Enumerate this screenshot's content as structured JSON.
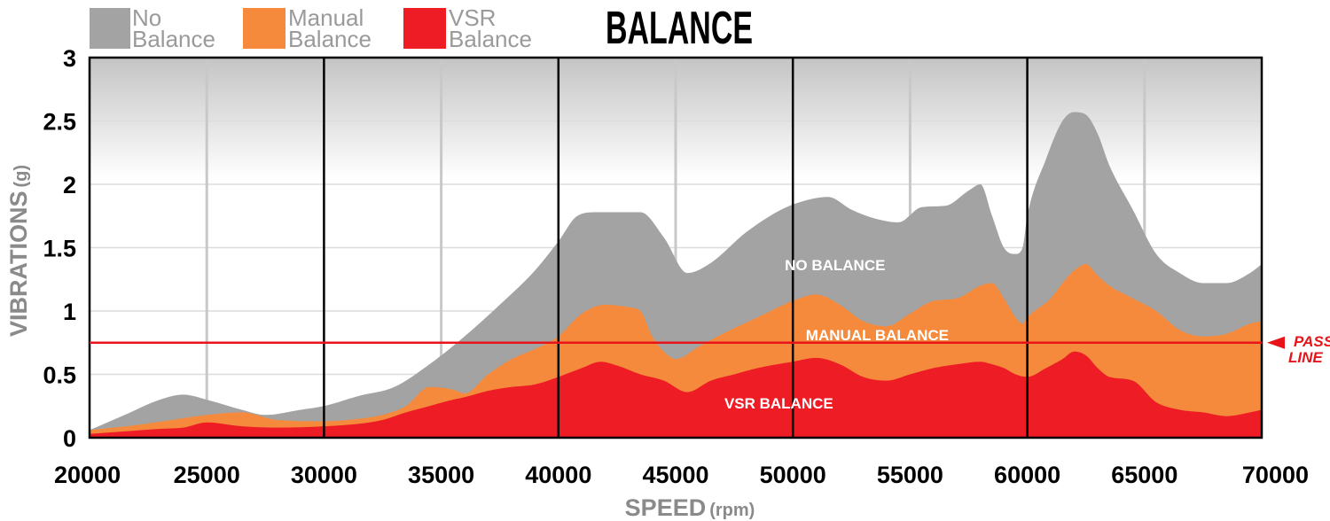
{
  "chart_data": {
    "type": "area",
    "title": "BALANCE",
    "xlabel": "SPEED",
    "xunit": "(rpm)",
    "ylabel": "VIBRATIONS",
    "yunit": "(g)",
    "xlim": [
      20000,
      70000
    ],
    "ylim": [
      0,
      3
    ],
    "xticks": [
      "20000",
      "25000",
      "30000",
      "35000",
      "40000",
      "45000",
      "50000",
      "55000",
      "60000",
      "65000",
      "70000"
    ],
    "yticks": [
      "0",
      "0.5",
      "1",
      "1.5",
      "2",
      "2.5",
      "3"
    ],
    "grid": true,
    "legend_position": "top-left",
    "legend": [
      {
        "line1": "No",
        "line2": "Balance",
        "color": "#a3a3a3"
      },
      {
        "line1": "Manual",
        "line2": "Balance",
        "color": "#f58a3c"
      },
      {
        "line1": "VSR",
        "line2": "Balance",
        "color": "#ee1c25"
      }
    ],
    "series": [
      {
        "name": "NO BALANCE",
        "color": "#a3a3a3",
        "x": [
          20000,
          21500,
          23000,
          24000,
          25000,
          26500,
          27500,
          29000,
          30000,
          31500,
          33000,
          34500,
          36000,
          37500,
          39000,
          40000,
          40800,
          41600,
          42500,
          43500,
          44500,
          45500,
          46500,
          48000,
          49500,
          50500,
          51500,
          52500,
          53500,
          54500,
          55500,
          56500,
          57500,
          58000,
          58500,
          59000,
          59500,
          59800,
          60000,
          60800,
          61500,
          62000,
          62500,
          63000,
          63500,
          64500,
          65500,
          66500,
          67500,
          68500,
          69500,
          70000
        ],
        "values": [
          0.06,
          0.18,
          0.3,
          0.34,
          0.3,
          0.22,
          0.18,
          0.22,
          0.25,
          0.33,
          0.4,
          0.58,
          0.8,
          1.05,
          1.32,
          1.55,
          1.75,
          1.78,
          1.78,
          1.78,
          1.58,
          1.3,
          1.38,
          1.62,
          1.8,
          1.87,
          1.9,
          1.8,
          1.73,
          1.7,
          1.82,
          1.83,
          1.95,
          2.0,
          1.75,
          1.5,
          1.45,
          1.5,
          1.75,
          2.2,
          2.5,
          2.57,
          2.55,
          2.4,
          2.15,
          1.8,
          1.45,
          1.3,
          1.22,
          1.22,
          1.3,
          1.37
        ]
      },
      {
        "name": "MANUAL BALANCE",
        "color": "#f58a3c",
        "x": [
          20000,
          22000,
          23500,
          25000,
          26500,
          28000,
          30000,
          31500,
          32500,
          33500,
          34500,
          35500,
          36000,
          37000,
          38000,
          39000,
          40000,
          41000,
          42000,
          43000,
          43500,
          44000,
          44500,
          45000,
          46000,
          47000,
          48500,
          50000,
          51000,
          52000,
          53000,
          54000,
          55000,
          56000,
          57000,
          58000,
          58500,
          59000,
          59500,
          59800,
          60000,
          61000,
          61500,
          62000,
          62500,
          63000,
          63500,
          64500,
          65500,
          66500,
          67500,
          68500,
          69500,
          70000
        ],
        "values": [
          0.06,
          0.1,
          0.14,
          0.18,
          0.2,
          0.14,
          0.13,
          0.15,
          0.18,
          0.25,
          0.4,
          0.38,
          0.35,
          0.5,
          0.62,
          0.7,
          0.8,
          0.98,
          1.05,
          1.03,
          1.0,
          0.8,
          0.68,
          0.62,
          0.72,
          0.82,
          0.95,
          1.08,
          1.13,
          1.05,
          0.92,
          0.88,
          0.98,
          1.08,
          1.1,
          1.2,
          1.22,
          1.1,
          0.95,
          0.9,
          0.95,
          1.1,
          1.22,
          1.32,
          1.37,
          1.28,
          1.2,
          1.1,
          1.0,
          0.85,
          0.8,
          0.82,
          0.9,
          0.92
        ]
      },
      {
        "name": "VSR BALANCE",
        "color": "#ee1c25",
        "x": [
          20000,
          21500,
          23000,
          24000,
          25000,
          26500,
          28000,
          30000,
          31500,
          32500,
          33500,
          34500,
          35500,
          36000,
          37000,
          38000,
          39000,
          40000,
          41000,
          41800,
          42500,
          43500,
          44500,
          45500,
          46500,
          47500,
          48500,
          50000,
          51000,
          52000,
          53000,
          54000,
          55000,
          56000,
          57000,
          58000,
          58500,
          59000,
          59500,
          60000,
          60800,
          61500,
          62000,
          62500,
          63000,
          63500,
          64500,
          65500,
          66500,
          67500,
          68500,
          69500,
          70000
        ],
        "values": [
          0.03,
          0.05,
          0.07,
          0.08,
          0.12,
          0.09,
          0.08,
          0.09,
          0.11,
          0.14,
          0.2,
          0.25,
          0.3,
          0.32,
          0.37,
          0.4,
          0.42,
          0.48,
          0.55,
          0.6,
          0.57,
          0.5,
          0.45,
          0.36,
          0.45,
          0.5,
          0.55,
          0.6,
          0.63,
          0.58,
          0.48,
          0.45,
          0.5,
          0.55,
          0.58,
          0.6,
          0.58,
          0.55,
          0.5,
          0.48,
          0.55,
          0.62,
          0.68,
          0.65,
          0.55,
          0.48,
          0.45,
          0.28,
          0.22,
          0.2,
          0.17,
          0.2,
          0.22
        ]
      }
    ],
    "pass_line": {
      "value": 0.75,
      "label_line1": "PASS",
      "label_line2": "LINE",
      "color": "#e8141a"
    },
    "area_labels": [
      {
        "text": "NO BALANCE",
        "x": 51800,
        "y": 1.32
      },
      {
        "text": "MANUAL BALANCE",
        "x": 53600,
        "y": 0.77
      },
      {
        "text": "VSR BALANCE",
        "x": 49400,
        "y": 0.23
      }
    ]
  }
}
